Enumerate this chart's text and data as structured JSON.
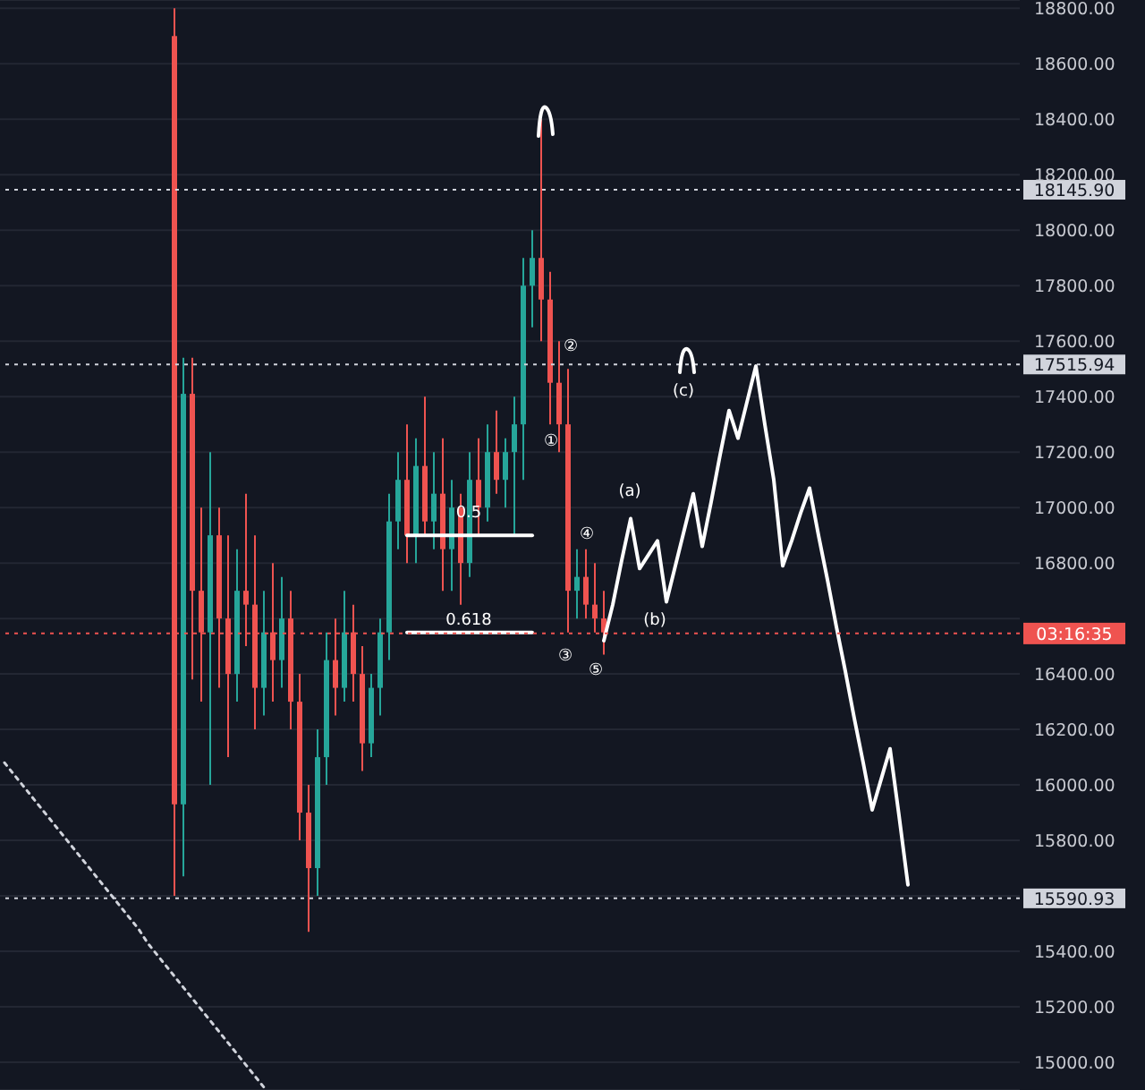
{
  "chart_data": {
    "type": "candlestick",
    "ylim": [
      14900,
      18830
    ],
    "categories": [
      null,
      null,
      null,
      null,
      null,
      null,
      null,
      null,
      null,
      null,
      null,
      null,
      null,
      null,
      null,
      null,
      null,
      null,
      null,
      null,
      null,
      null,
      null,
      null,
      null,
      null,
      null,
      null,
      null,
      null,
      null,
      null,
      null,
      null,
      null,
      null,
      null,
      null,
      null,
      null,
      null,
      null,
      null,
      null,
      null,
      null,
      null,
      null,
      null,
      null,
      null,
      null,
      null,
      null,
      null,
      null,
      null,
      null,
      null,
      null,
      null,
      null,
      null,
      null,
      null,
      null,
      null,
      null,
      null,
      null,
      null,
      null,
      null,
      null,
      null,
      null,
      null,
      null,
      null,
      null,
      null,
      null,
      null,
      null,
      null,
      null,
      null,
      null,
      null,
      null,
      null,
      null,
      null,
      null,
      null,
      null,
      null,
      null,
      null,
      null,
      null,
      null,
      null,
      null,
      null,
      null,
      null,
      null,
      null,
      null,
      null,
      null,
      null,
      null
    ],
    "yticks": [
      {
        "value": 15000,
        "label": "15000.00"
      },
      {
        "value": 15200,
        "label": "15200.00"
      },
      {
        "value": 15400,
        "label": "15400.00"
      },
      {
        "value": 15600,
        "label": null
      },
      {
        "value": 15800,
        "label": "15800.00"
      },
      {
        "value": 16000,
        "label": "16000.00"
      },
      {
        "value": 16200,
        "label": "16200.00"
      },
      {
        "value": 16400,
        "label": "16400.00"
      },
      {
        "value": 16600,
        "label": null
      },
      {
        "value": 16800,
        "label": "16800.00"
      },
      {
        "value": 17000,
        "label": "17000.00"
      },
      {
        "value": 17200,
        "label": "17200.00"
      },
      {
        "value": 17400,
        "label": "17400.00"
      },
      {
        "value": 17600,
        "label": "17600.00"
      },
      {
        "value": 17800,
        "label": "17800.00"
      },
      {
        "value": 18000,
        "label": "18000.00"
      },
      {
        "value": 18200,
        "label": "18200.00"
      },
      {
        "value": 18400,
        "label": "18400.00"
      },
      {
        "value": 18600,
        "label": "18600.00"
      },
      {
        "value": 18800,
        "label": "18800.00"
      }
    ],
    "tick_labels": "y",
    "grid": "y",
    "ohlc": [
      null,
      null,
      null,
      null,
      null,
      null,
      null,
      null,
      null,
      null,
      null,
      null,
      null,
      null,
      null,
      null,
      null,
      null,
      null,
      [
        18700,
        18800,
        15600,
        15930
      ],
      [
        15930,
        17540,
        15670,
        17410
      ],
      [
        17410,
        17540,
        16380,
        16700
      ],
      [
        16700,
        17000,
        16300,
        16550
      ],
      [
        16550,
        17200,
        16000,
        16900
      ],
      [
        16900,
        17000,
        16350,
        16600
      ],
      [
        16600,
        16900,
        16100,
        16400
      ],
      [
        16400,
        16850,
        16300,
        16700
      ],
      [
        16700,
        17050,
        16500,
        16650
      ],
      [
        16650,
        16900,
        16200,
        16350
      ],
      [
        16350,
        16700,
        16250,
        16550
      ],
      [
        16550,
        16800,
        16300,
        16450
      ],
      [
        16450,
        16750,
        16350,
        16600
      ],
      [
        16600,
        16700,
        16200,
        16300
      ],
      [
        16300,
        16400,
        15800,
        15900
      ],
      [
        15900,
        16000,
        15470,
        15700
      ],
      [
        15700,
        16200,
        15600,
        16100
      ],
      [
        16100,
        16550,
        16000,
        16450
      ],
      [
        16450,
        16600,
        16250,
        16350
      ],
      [
        16350,
        16700,
        16300,
        16550
      ],
      [
        16550,
        16650,
        16300,
        16400
      ],
      [
        16400,
        16500,
        16050,
        16150
      ],
      [
        16150,
        16400,
        16100,
        16350
      ],
      [
        16350,
        16600,
        16250,
        16550
      ],
      [
        16550,
        17050,
        16450,
        16950
      ],
      [
        16950,
        17200,
        16850,
        17100
      ],
      [
        17100,
        17300,
        16800,
        16900
      ],
      [
        16900,
        17250,
        16800,
        17150
      ],
      [
        17150,
        17400,
        16900,
        16950
      ],
      [
        16950,
        17200,
        16850,
        17050
      ],
      [
        17050,
        17250,
        16700,
        16850
      ],
      [
        16850,
        17100,
        16700,
        17000
      ],
      [
        17000,
        17050,
        16650,
        16800
      ],
      [
        16800,
        17200,
        16750,
        17100
      ],
      [
        17100,
        17250,
        16900,
        17000
      ],
      [
        17000,
        17300,
        16950,
        17200
      ],
      [
        17200,
        17350,
        17050,
        17100
      ],
      [
        17100,
        17250,
        17000,
        17200
      ],
      [
        17200,
        17400,
        16900,
        17300
      ],
      [
        17300,
        17900,
        17100,
        17800
      ],
      [
        17800,
        18000,
        17650,
        17900
      ],
      [
        17900,
        18400,
        17600,
        17750
      ],
      [
        17750,
        17850,
        17300,
        17450
      ],
      [
        17450,
        17600,
        17200,
        17300
      ],
      [
        17300,
        17500,
        16550,
        16700
      ],
      [
        16700,
        16850,
        16600,
        16750
      ],
      [
        16750,
        16850,
        16600,
        16650
      ],
      [
        16650,
        16800,
        16550,
        16600
      ],
      [
        16600,
        16700,
        16470,
        16550
      ],
      null,
      null,
      null,
      null,
      null,
      null,
      null,
      null,
      null,
      null,
      null,
      null,
      null,
      null,
      null,
      null,
      null,
      null,
      null,
      null,
      null,
      null,
      null,
      null,
      null,
      null,
      null,
      null,
      null,
      null,
      null,
      null,
      null,
      null,
      null,
      null,
      null,
      null,
      null,
      null,
      null,
      null,
      null,
      null,
      null,
      null
    ],
    "series": [
      {
        "type": "line",
        "color": "#ffffff",
        "values": [
          null,
          null,
          null,
          null,
          null,
          null,
          null,
          null,
          null,
          null,
          null,
          null,
          null,
          null,
          null,
          null,
          null,
          null,
          null,
          null,
          null,
          null,
          null,
          null,
          null,
          null,
          null,
          null,
          null,
          null,
          null,
          null,
          null,
          null,
          null,
          null,
          null,
          null,
          null,
          null,
          null,
          null,
          null,
          null,
          null,
          null,
          null,
          null,
          null,
          null,
          null,
          null,
          null,
          null,
          null,
          null,
          null,
          null,
          null,
          null,
          null,
          null,
          null,
          null,
          null,
          null,
          null,
          16520,
          16650,
          16810,
          16960,
          16780,
          16830,
          16880,
          16660,
          16790,
          16920,
          17050,
          16860,
          17020,
          17190,
          17350,
          17250,
          17380,
          17510,
          17300,
          17100,
          16790,
          16880,
          16980,
          17070,
          16900,
          16740,
          16570,
          16410,
          16240,
          16080,
          15910,
          16020,
          16130,
          15890,
          15640,
          null,
          null,
          null,
          null,
          null,
          null,
          null,
          null,
          null,
          null,
          null,
          null
        ]
      },
      {
        "type": "line",
        "color": "#ffffff",
        "values": [
          null,
          null,
          null,
          null,
          null,
          null,
          null,
          null,
          null,
          null,
          null,
          null,
          null,
          null,
          null,
          null,
          null,
          null,
          null,
          null,
          null,
          null,
          null,
          null,
          null,
          null,
          null,
          null,
          null,
          null,
          null,
          null,
          null,
          null,
          null,
          null,
          null,
          null,
          null,
          null,
          null,
          null,
          null,
          null,
          null,
          16900,
          16900,
          16900,
          16900,
          16900,
          16900,
          16900,
          16900,
          16900,
          16900,
          16900,
          16900,
          16900,
          16900,
          16900,
          null,
          null,
          null,
          null,
          null,
          null,
          null,
          null,
          null,
          null,
          null,
          null,
          null,
          null,
          null,
          null,
          null,
          null,
          null,
          null,
          null,
          null,
          null,
          null,
          null,
          null,
          null,
          null,
          null,
          null,
          null,
          null,
          null,
          null,
          null,
          null,
          null,
          null,
          null,
          null,
          null,
          null,
          null,
          null,
          null,
          null,
          null,
          null,
          null,
          null,
          null,
          null,
          null,
          null
        ]
      },
      {
        "type": "line",
        "color": "#ffffff",
        "values": [
          null,
          null,
          null,
          null,
          null,
          null,
          null,
          null,
          null,
          null,
          null,
          null,
          null,
          null,
          null,
          null,
          null,
          null,
          null,
          null,
          null,
          null,
          null,
          null,
          null,
          null,
          null,
          null,
          null,
          null,
          null,
          null,
          null,
          null,
          null,
          null,
          null,
          null,
          null,
          null,
          null,
          null,
          null,
          null,
          null,
          16550,
          16550,
          16550,
          16550,
          16550,
          16550,
          16550,
          16550,
          16550,
          16550,
          16550,
          16550,
          16550,
          16550,
          16550,
          null,
          null,
          null,
          null,
          null,
          null,
          null,
          null,
          null,
          null,
          null,
          null,
          null,
          null,
          null,
          null,
          null,
          null,
          null,
          null,
          null,
          null,
          null,
          null,
          null,
          null,
          null,
          null,
          null,
          null,
          null,
          null,
          null,
          null,
          null,
          null,
          null,
          null,
          null,
          null,
          null,
          null,
          null,
          null,
          null,
          null,
          null,
          null,
          null,
          null,
          null,
          null,
          null,
          null
        ]
      },
      {
        "type": "line",
        "color": "#d1d4dc",
        "line_style": "dotted",
        "values": [
          16080,
          16040,
          16000,
          15960,
          15920,
          15880,
          15840,
          15800,
          15760,
          15720,
          15680,
          15640,
          15600,
          15560,
          15520,
          15480,
          15430,
          15390,
          15350,
          15310,
          15270,
          15230,
          15190,
          15150,
          15110,
          15070,
          15030,
          14990,
          14950,
          14910,
          null,
          null,
          null,
          null,
          null,
          null,
          null,
          null,
          null,
          null,
          null,
          null,
          null,
          null,
          null,
          null,
          null,
          null,
          null,
          null,
          null,
          null,
          null,
          null,
          null,
          null,
          null,
          null,
          null,
          null,
          null,
          null,
          null,
          null,
          null,
          null,
          null,
          null,
          null,
          null,
          null,
          null,
          null,
          null,
          null,
          null,
          null,
          null,
          null,
          null,
          null,
          null,
          null,
          null,
          null,
          null,
          null,
          null,
          null,
          null,
          null,
          null,
          null,
          null,
          null,
          null,
          null,
          null,
          null,
          null,
          null,
          null,
          null,
          null,
          null,
          null,
          null,
          null,
          null,
          null,
          null,
          null,
          null,
          null
        ]
      }
    ],
    "ref_lines": [
      {
        "axis": "y",
        "value": 18145.9,
        "label": "18145.90",
        "color": "#d1d4dc",
        "line_style": "dotted"
      },
      {
        "axis": "y",
        "value": 17515.94,
        "label": "17515.94",
        "color": "#d1d4dc",
        "line_style": "dotted"
      },
      {
        "axis": "y",
        "value": 15590.93,
        "label": "15590.93",
        "color": "#d1d4dc",
        "line_style": "dotted"
      },
      {
        "axis": "y",
        "value": 16546,
        "color": "#ef5350",
        "line_style": "dotted"
      }
    ],
    "annotations": [
      "03:16:35",
      "0.5",
      "0.618",
      "①",
      "②",
      "③",
      "④",
      "⑤",
      "(a)",
      "(b)",
      "(c)"
    ]
  }
}
